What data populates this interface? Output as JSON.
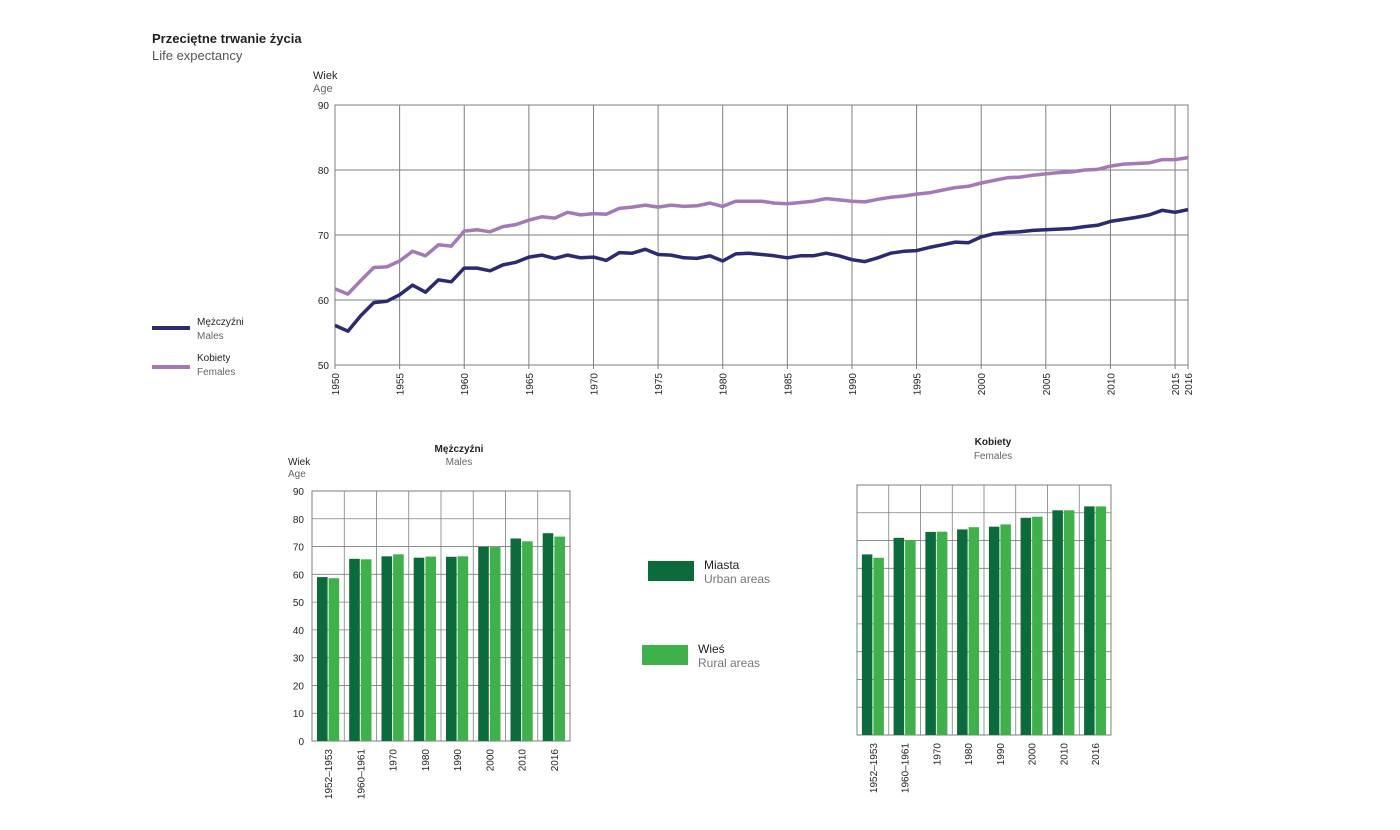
{
  "header": {
    "title_pl": "Przeciętne trwanie życia",
    "title_en": "Life expectancy"
  },
  "line_legend": {
    "males_pl": "Mężczyźni",
    "males_en": "Males",
    "females_pl": "Kobiety",
    "females_en": "Females"
  },
  "bar_legend": {
    "urban_pl": "Miasta",
    "urban_en": "Urban areas",
    "rural_pl": "Wieś",
    "rural_en": "Rural areas"
  },
  "colors": {
    "males": "#2b2a73",
    "females": "#a479b8",
    "urban": "#0b6b3a",
    "rural": "#3fb14b",
    "grid": "#7f7f7f"
  },
  "chart_data": [
    {
      "type": "line",
      "ylabel_pl": "Wiek",
      "ylabel_en": "Age",
      "xlim": [
        1950,
        2016
      ],
      "ylim": [
        50,
        90
      ],
      "yticks": [
        50,
        60,
        70,
        80,
        90
      ],
      "xticks": [
        1950,
        1955,
        1960,
        1965,
        1970,
        1975,
        1980,
        1985,
        1990,
        1995,
        2000,
        2005,
        2010,
        2015,
        2016
      ],
      "x": [
        1950,
        1951,
        1952,
        1953,
        1954,
        1955,
        1956,
        1957,
        1958,
        1959,
        1960,
        1961,
        1962,
        1963,
        1964,
        1965,
        1966,
        1967,
        1968,
        1969,
        1970,
        1971,
        1972,
        1973,
        1974,
        1975,
        1976,
        1977,
        1978,
        1979,
        1980,
        1981,
        1982,
        1983,
        1984,
        1985,
        1986,
        1987,
        1988,
        1989,
        1990,
        1991,
        1992,
        1993,
        1994,
        1995,
        1996,
        1997,
        1998,
        1999,
        2000,
        2001,
        2002,
        2003,
        2004,
        2005,
        2006,
        2007,
        2008,
        2009,
        2010,
        2011,
        2012,
        2013,
        2014,
        2015,
        2016
      ],
      "series": [
        {
          "name": "Males",
          "values": [
            56.1,
            55.2,
            57.6,
            59.6,
            59.8,
            60.8,
            62.3,
            61.2,
            63.1,
            62.8,
            64.9,
            64.9,
            64.5,
            65.4,
            65.8,
            66.6,
            66.9,
            66.4,
            66.9,
            66.5,
            66.6,
            66.1,
            67.3,
            67.2,
            67.8,
            67.0,
            66.9,
            66.5,
            66.4,
            66.8,
            66.0,
            67.1,
            67.2,
            67.0,
            66.8,
            66.5,
            66.8,
            66.8,
            67.2,
            66.8,
            66.2,
            65.9,
            66.5,
            67.2,
            67.5,
            67.6,
            68.1,
            68.5,
            68.9,
            68.8,
            69.7,
            70.2,
            70.4,
            70.5,
            70.7,
            70.8,
            70.9,
            71.0,
            71.3,
            71.5,
            72.1,
            72.4,
            72.7,
            73.1,
            73.8,
            73.5,
            73.9
          ]
        },
        {
          "name": "Females",
          "values": [
            61.7,
            60.9,
            63.0,
            65.0,
            65.1,
            66.0,
            67.5,
            66.8,
            68.5,
            68.3,
            70.6,
            70.8,
            70.5,
            71.3,
            71.6,
            72.3,
            72.8,
            72.6,
            73.5,
            73.1,
            73.3,
            73.2,
            74.1,
            74.3,
            74.6,
            74.3,
            74.6,
            74.4,
            74.5,
            74.9,
            74.4,
            75.2,
            75.2,
            75.2,
            74.9,
            74.8,
            75.0,
            75.2,
            75.6,
            75.4,
            75.2,
            75.1,
            75.5,
            75.8,
            76.0,
            76.3,
            76.5,
            76.9,
            77.3,
            77.5,
            78.0,
            78.4,
            78.8,
            78.9,
            79.2,
            79.4,
            79.6,
            79.7,
            80.0,
            80.1,
            80.6,
            80.9,
            81.0,
            81.1,
            81.6,
            81.6,
            81.9
          ]
        }
      ]
    },
    {
      "type": "bar",
      "title_pl": "Mężczyźni",
      "title_en": "Males",
      "ylabel_pl": "Wiek",
      "ylabel_en": "Age",
      "ylim": [
        0,
        90
      ],
      "yticks": [
        0,
        10,
        20,
        30,
        40,
        50,
        60,
        70,
        80,
        90
      ],
      "categories": [
        "1952–1953",
        "1960–1961",
        "1970",
        "1980",
        "1990",
        "2000",
        "2010",
        "2016"
      ],
      "series": [
        {
          "name": "Miasta",
          "values": [
            59.0,
            65.6,
            66.5,
            66.0,
            66.3,
            69.9,
            72.9,
            74.8
          ]
        },
        {
          "name": "Wieś",
          "values": [
            58.6,
            65.4,
            67.2,
            66.4,
            66.5,
            69.8,
            71.9,
            73.6
          ]
        }
      ]
    },
    {
      "type": "bar",
      "title_pl": "Kobiety",
      "title_en": "Females",
      "ylim": [
        0,
        90
      ],
      "categories": [
        "1952–1953",
        "1960–1961",
        "1970",
        "1980",
        "1990",
        "2000",
        "2010",
        "2016"
      ],
      "series": [
        {
          "name": "Miasta",
          "values": [
            65.0,
            71.0,
            73.1,
            74.0,
            75.0,
            78.2,
            80.9,
            82.3
          ]
        },
        {
          "name": "Wieś",
          "values": [
            63.8,
            70.2,
            73.2,
            74.8,
            75.8,
            78.6,
            80.9,
            82.3
          ]
        }
      ]
    }
  ]
}
